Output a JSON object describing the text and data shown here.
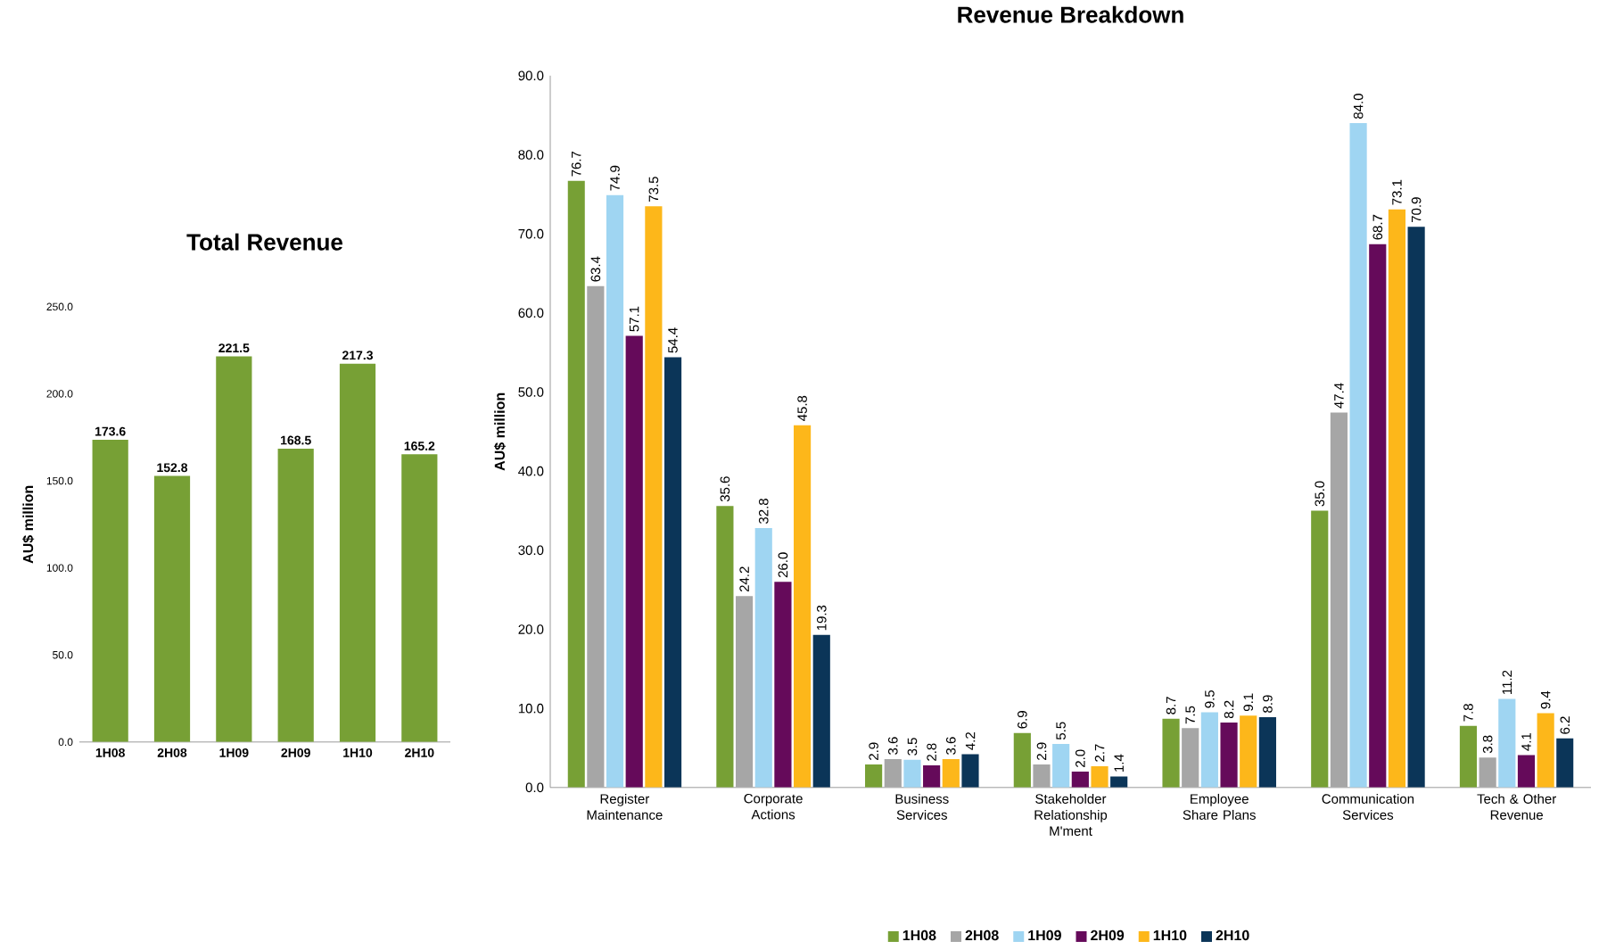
{
  "chart_data": [
    {
      "type": "bar",
      "title": "Total Revenue",
      "ylabel": "AU$ million",
      "categories": [
        "1H08",
        "2H08",
        "1H09",
        "2H09",
        "1H10",
        "2H10"
      ],
      "values": [
        173.6,
        152.8,
        221.5,
        168.5,
        217.3,
        165.2
      ],
      "color": "#77a035",
      "ylim": [
        0,
        250
      ],
      "yticks": [
        {
          "value": 0,
          "label": "0.0"
        },
        {
          "value": 50,
          "label": "50.0"
        },
        {
          "value": 100,
          "label": "100.0"
        },
        {
          "value": 150,
          "label": "150.0"
        },
        {
          "value": 200,
          "label": "200.0"
        },
        {
          "value": 250,
          "label": "250.0"
        }
      ],
      "data_labels": true
    },
    {
      "type": "bar",
      "title": "Revenue Breakdown",
      "ylabel": "AU$ million",
      "categories": [
        "Register Maintenance",
        "Corporate Actions",
        "Business Services",
        "Stakeholder Relationship M'ment",
        "Employee Share Plans",
        "Communication Services",
        "Tech & Other Revenue"
      ],
      "ylim": [
        0,
        90
      ],
      "yticks": [
        {
          "value": 0,
          "label": "0.0"
        },
        {
          "value": 10,
          "label": "10.0"
        },
        {
          "value": 20,
          "label": "20.0"
        },
        {
          "value": 30,
          "label": "30.0"
        },
        {
          "value": 40,
          "label": "40.0"
        },
        {
          "value": 50,
          "label": "50.0"
        },
        {
          "value": 60,
          "label": "60.0"
        },
        {
          "value": 70,
          "label": "70.0"
        },
        {
          "value": 80,
          "label": "80.0"
        },
        {
          "value": 90,
          "label": "90.0"
        }
      ],
      "legend": "bottom",
      "series": [
        {
          "name": "1H08",
          "color": "#77a035",
          "values": [
            76.7,
            35.6,
            2.9,
            6.9,
            8.7,
            35.0,
            7.8
          ],
          "value_labels": [
            "76.7",
            "35.6",
            "2.9",
            "6.9",
            "8.7",
            "35.0",
            "7.8"
          ]
        },
        {
          "name": "2H08",
          "color": "#a6a6a6",
          "values": [
            63.4,
            24.2,
            3.6,
            2.9,
            7.5,
            47.4,
            3.8
          ],
          "value_labels": [
            "63.4",
            "24.2",
            "3.6",
            "2.9",
            "7.5",
            "47.4",
            "3.8"
          ]
        },
        {
          "name": "1H09",
          "color": "#9fd5f2",
          "values": [
            74.9,
            32.8,
            3.5,
            5.5,
            9.5,
            84.0,
            11.2
          ],
          "value_labels": [
            "74.9",
            "32.8",
            "3.5",
            "5.5",
            "9.5",
            "84.0",
            "11.2"
          ]
        },
        {
          "name": "2H09",
          "color": "#650a5a",
          "values": [
            57.1,
            26.0,
            2.8,
            2.0,
            8.2,
            68.7,
            4.1
          ],
          "value_labels": [
            "57.1",
            "26.0",
            "2.8",
            "2.0",
            "8.2",
            "68.7",
            "4.1"
          ]
        },
        {
          "name": "1H10",
          "color": "#fdb71a",
          "values": [
            73.5,
            45.8,
            3.6,
            2.7,
            9.1,
            73.1,
            9.4
          ],
          "value_labels": [
            "73.5",
            "45.8",
            "3.6",
            "2.7",
            "9.1",
            "73.1",
            "9.4"
          ]
        },
        {
          "name": "2H10",
          "color": "#0b3558",
          "values": [
            54.4,
            19.3,
            4.2,
            1.4,
            8.9,
            70.9,
            6.2
          ],
          "value_labels": [
            "54.4",
            "19.3",
            "4.2",
            "1.4",
            "8.9",
            "70.9",
            "6.2"
          ]
        }
      ]
    }
  ]
}
